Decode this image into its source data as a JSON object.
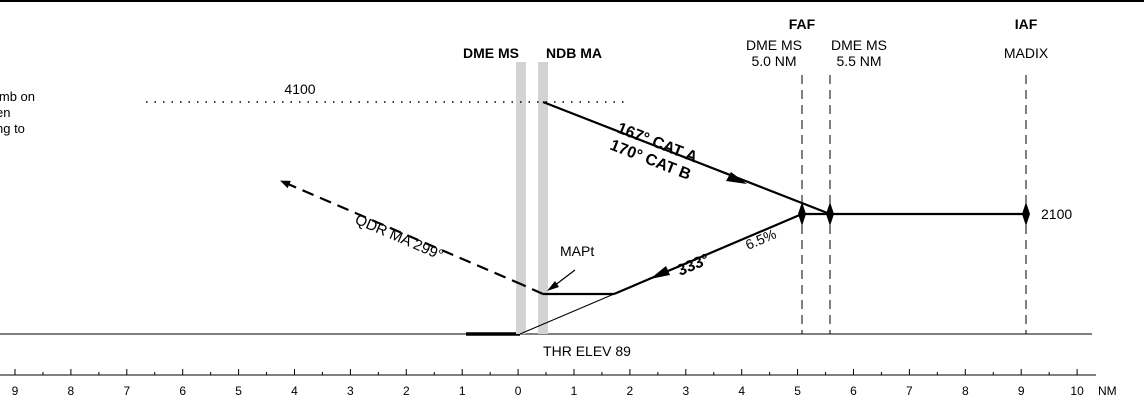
{
  "points": {
    "faf": {
      "title": "FAF",
      "line1": "DME MS",
      "line2": "5.0 NM"
    },
    "fix55": {
      "line1": "DME MS",
      "line2": "5.5 NM"
    },
    "iaf": {
      "title": "IAF",
      "line1": "MADIX"
    }
  },
  "beacons": {
    "dme": "DME MS",
    "ndb": "NDB MA"
  },
  "altitudes": {
    "upper": "4100",
    "lower": "2100"
  },
  "note_lines": [
    "imb on",
    "en",
    "ng to"
  ],
  "tracks": {
    "cat_a": "167° CAT A",
    "cat_b": "170° CAT B",
    "missed_approach": "QDR MA 299°",
    "final": "333°",
    "gradient": "6.5%"
  },
  "mapt_label": "MAPt",
  "threshold": "THR ELEV 89",
  "scale": {
    "ticks": [
      "9",
      "8",
      "7",
      "6",
      "5",
      "4",
      "3",
      "2",
      "1",
      "0",
      "1",
      "2",
      "3",
      "4",
      "5",
      "6",
      "7",
      "8",
      "9",
      "10"
    ],
    "unit": "NM"
  }
}
